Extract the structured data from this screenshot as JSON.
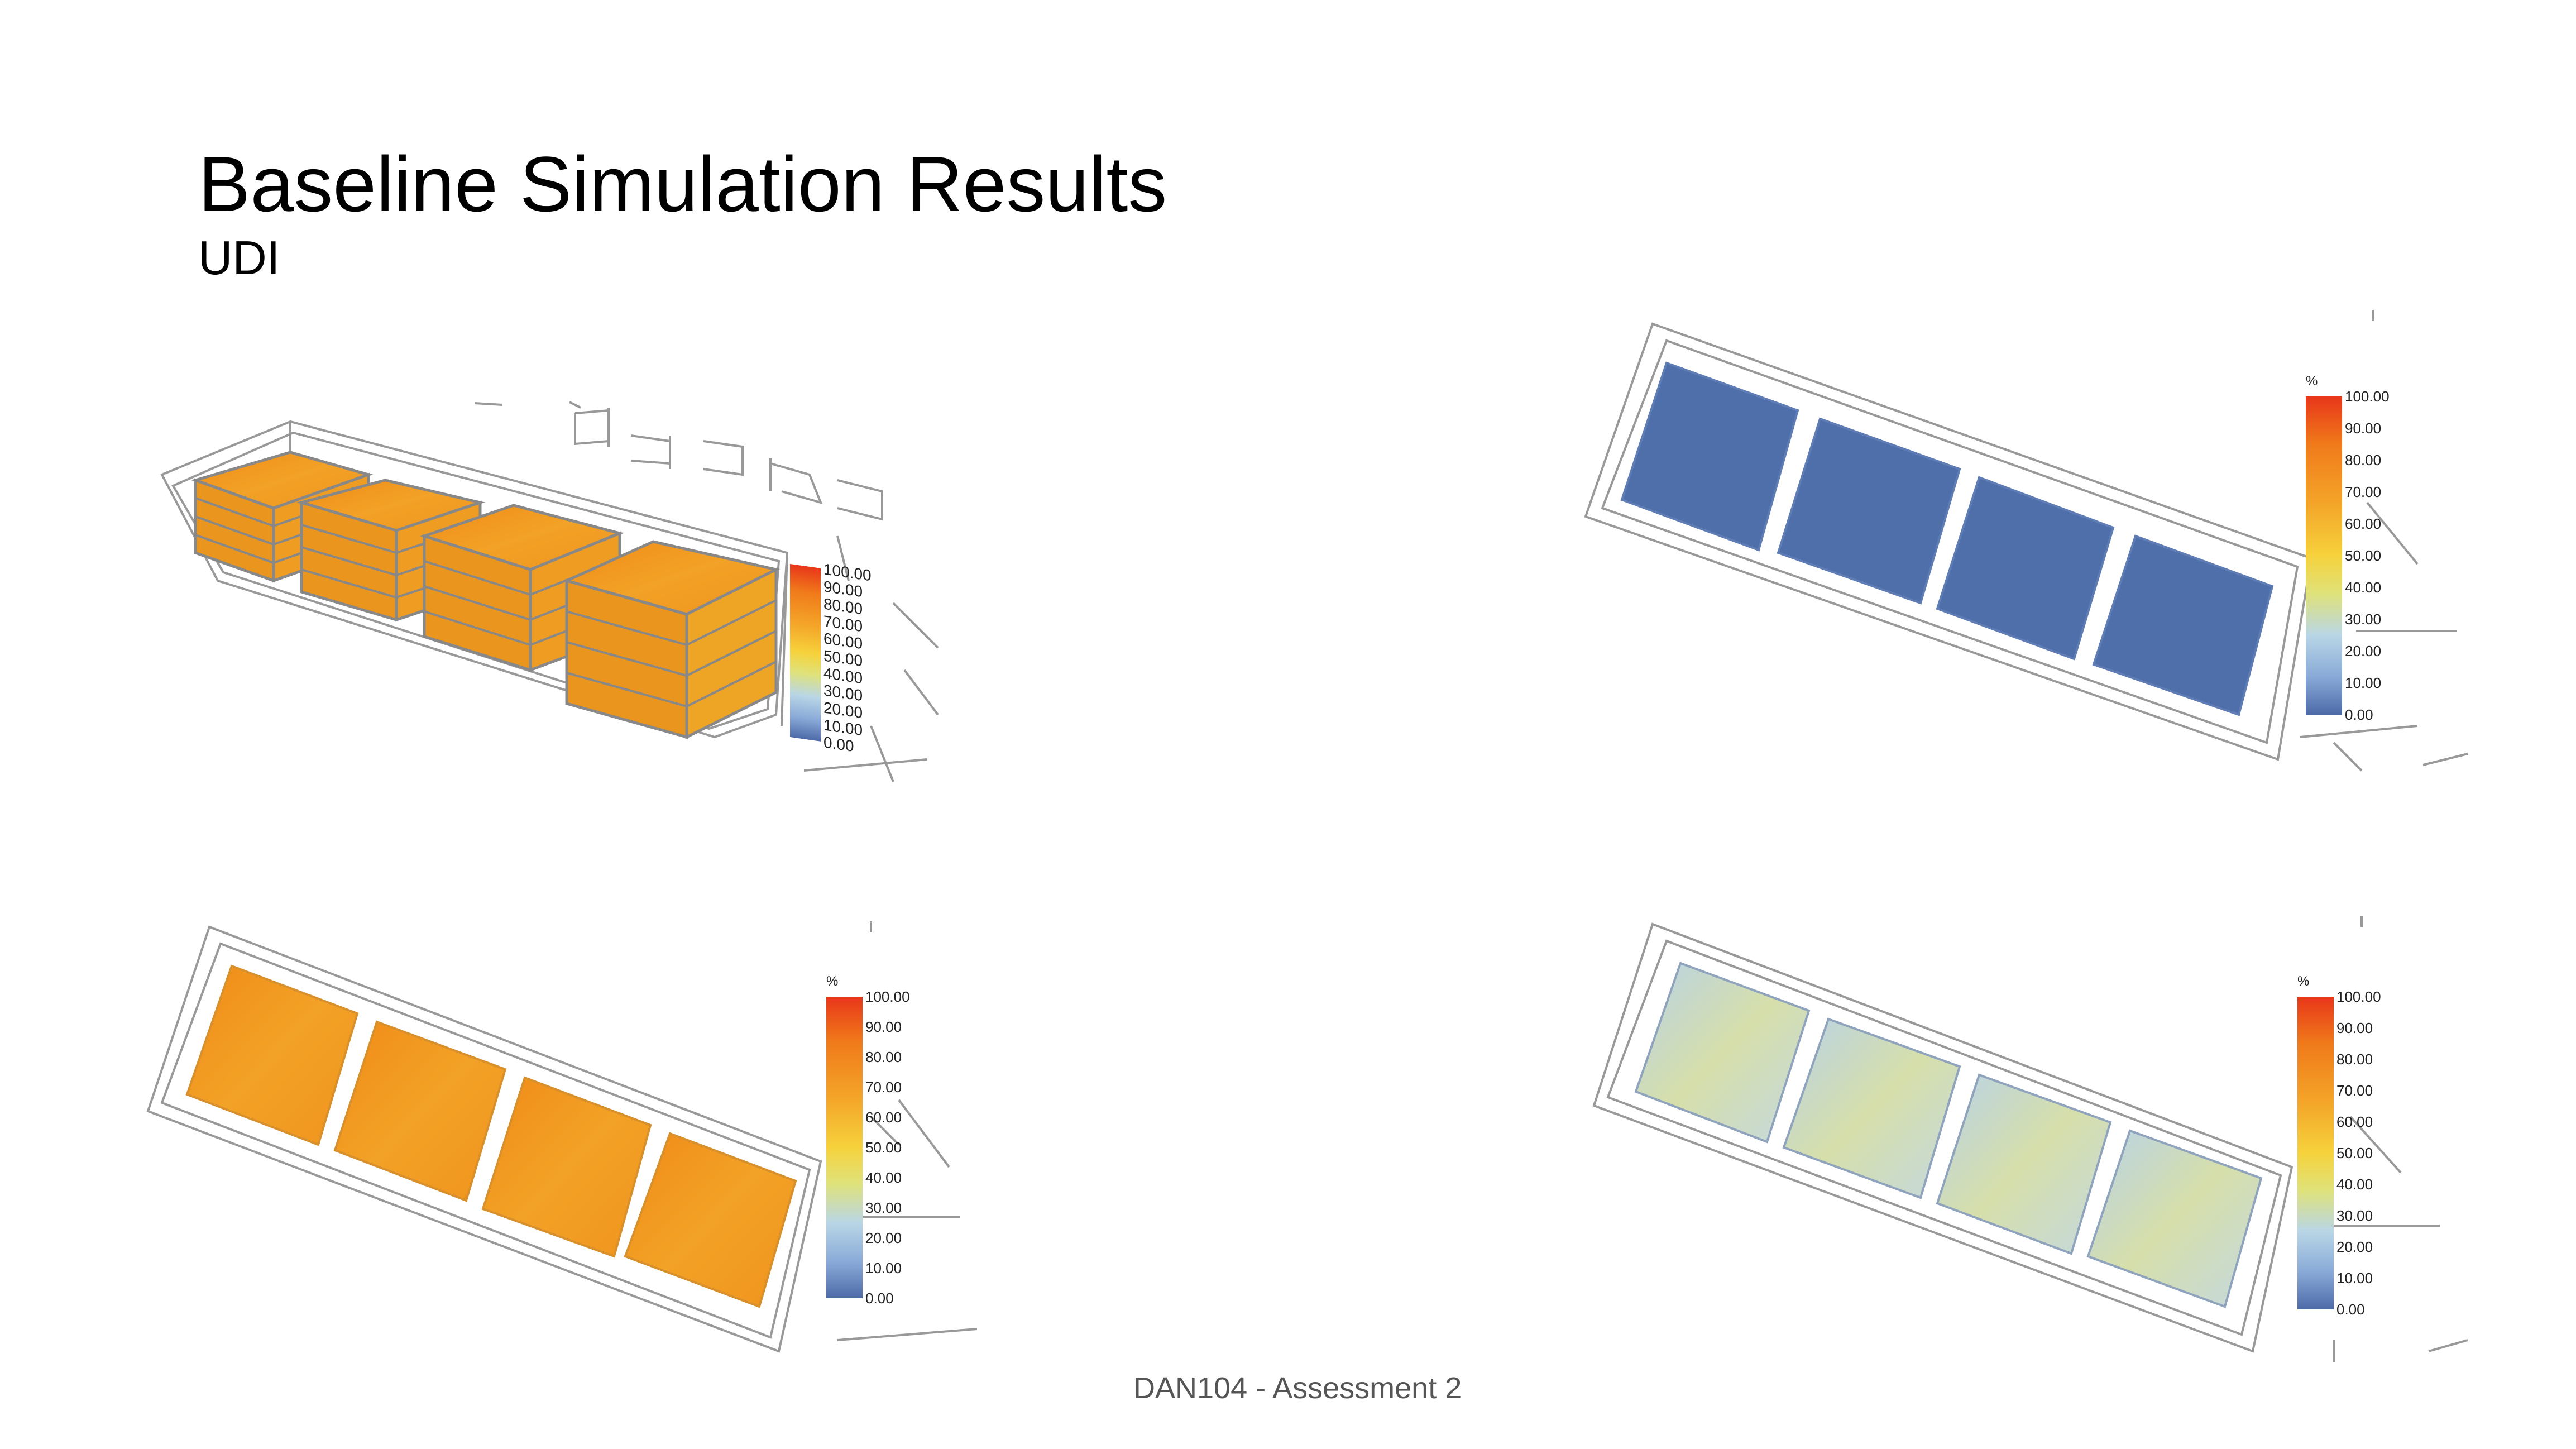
{
  "slide": {
    "title": "Baseline Simulation Results",
    "subtitle": "UDI",
    "footer": "DAN104 - Assessment 2"
  },
  "legend": {
    "unit": "%",
    "ticks": [
      "100.00",
      "90.00",
      "80.00",
      "70.00",
      "60.00",
      "50.00",
      "40.00",
      "30.00",
      "20.00",
      "10.00",
      "0.00"
    ],
    "gradient_colors": [
      "#e8361a",
      "#f07a1a",
      "#f4a82a",
      "#f6d23c",
      "#dfe27a",
      "#b9d6e6",
      "#89aad8",
      "#4d6aa8"
    ]
  },
  "panels": [
    {
      "name": "perspective-view",
      "fill_color": "#f0a020"
    },
    {
      "name": "plan-top-right",
      "fill_color": "#4f6fab"
    },
    {
      "name": "plan-bottom-left",
      "fill_color": "#f0a024"
    },
    {
      "name": "plan-bottom-right",
      "fill_color": "#c0d6e4",
      "secondary_color": "#d9e0a8"
    }
  ]
}
